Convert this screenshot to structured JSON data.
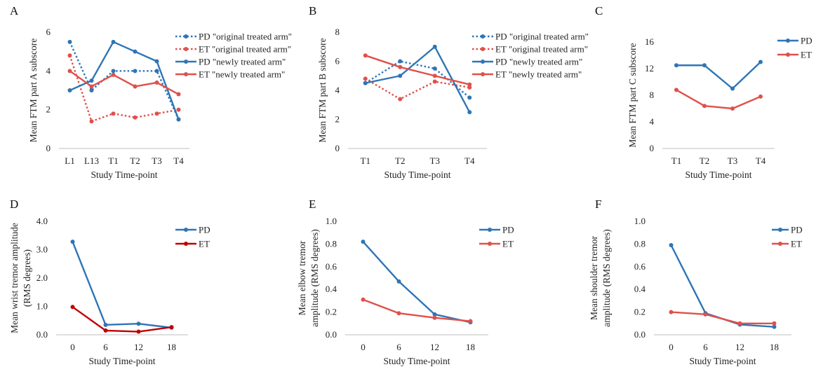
{
  "colors": {
    "PD": "#2e75b6",
    "ET": "#e0504a",
    "ET_D": "#c00000"
  },
  "chart_data": [
    {
      "panel": "A",
      "type": "line",
      "categories": [
        "L1",
        "L13",
        "T1",
        "T2",
        "T3",
        "T4"
      ],
      "xlabel": "Study Time-point",
      "ylabel": "Mean FTM part A subscore",
      "ylim": [
        0,
        6
      ],
      "yticks": [
        "0",
        "2",
        "4",
        "6"
      ],
      "ytick_values": [
        0,
        2,
        4,
        6
      ],
      "legend_position": "right",
      "series": [
        {
          "name": "PD \"original treated arm\"",
          "color": "PD",
          "dash": true,
          "values": [
            5.5,
            3.0,
            4.0,
            4.0,
            4.0,
            1.5
          ]
        },
        {
          "name": "ET \"original treated arm\"",
          "color": "ET",
          "dash": true,
          "values": [
            4.8,
            1.4,
            1.8,
            1.6,
            1.8,
            2.0
          ]
        },
        {
          "name": "PD \"newly treated arm\"",
          "color": "PD",
          "dash": false,
          "values": [
            3.0,
            3.5,
            5.5,
            5.0,
            4.5,
            1.5
          ]
        },
        {
          "name": "ET \"newly treated arm\"",
          "color": "ET",
          "dash": false,
          "values": [
            4.0,
            3.2,
            3.8,
            3.2,
            3.4,
            2.8
          ]
        }
      ]
    },
    {
      "panel": "B",
      "type": "line",
      "categories": [
        "T1",
        "T2",
        "T3",
        "T4"
      ],
      "xlabel": "Study Time-point",
      "ylabel": "Mean FTM part B subscore",
      "ylim": [
        0,
        8
      ],
      "yticks": [
        "0",
        "2",
        "4",
        "6",
        "8"
      ],
      "ytick_values": [
        0,
        2,
        4,
        6,
        8
      ],
      "legend_position": "right",
      "series": [
        {
          "name": "PD \"original treated arm\"",
          "color": "PD",
          "dash": true,
          "values": [
            4.5,
            6.0,
            5.5,
            3.5
          ]
        },
        {
          "name": "ET \"original treated arm\"",
          "color": "ET",
          "dash": true,
          "values": [
            4.8,
            3.4,
            4.6,
            4.2
          ]
        },
        {
          "name": "PD \"newly treated arm\"",
          "color": "PD",
          "dash": false,
          "values": [
            4.5,
            5.0,
            7.0,
            2.5
          ]
        },
        {
          "name": "ET \"newly treated arm\"",
          "color": "ET",
          "dash": false,
          "values": [
            6.4,
            5.6,
            5.0,
            4.4
          ]
        }
      ]
    },
    {
      "panel": "C",
      "type": "line",
      "categories": [
        "T1",
        "T2",
        "T3",
        "T4"
      ],
      "xlabel": "Study Time-point",
      "ylabel": "Mean FTM part C subscore",
      "ylim": [
        0,
        16
      ],
      "yticks": [
        "0",
        "4",
        "8",
        "12",
        "16"
      ],
      "ytick_values": [
        0,
        4,
        8,
        12,
        16
      ],
      "legend_position": "top-right",
      "series": [
        {
          "name": "PD",
          "color": "PD",
          "dash": false,
          "values": [
            12.5,
            12.5,
            9.0,
            13.0
          ]
        },
        {
          "name": "ET",
          "color": "ET",
          "dash": false,
          "values": [
            8.8,
            6.4,
            6.0,
            7.8
          ]
        }
      ]
    },
    {
      "panel": "D",
      "type": "line",
      "categories": [
        "0",
        "6",
        "12",
        "18"
      ],
      "xlabel": "Study Time-point",
      "ylabel": [
        "Mean wrist tremor amplitude",
        "(RMS degrees)"
      ],
      "ylim": [
        0,
        4
      ],
      "yticks": [
        "0.0",
        "1.0",
        "2.0",
        "3.0",
        "4.0"
      ],
      "ytick_values": [
        0,
        1,
        2,
        3,
        4
      ],
      "legend_position": "top-right",
      "series": [
        {
          "name": "PD",
          "color": "PD",
          "dash": false,
          "values": [
            3.28,
            0.35,
            0.39,
            0.25
          ]
        },
        {
          "name": "ET",
          "color": "ET_D",
          "dash": false,
          "values": [
            0.98,
            0.15,
            0.11,
            0.27
          ]
        }
      ]
    },
    {
      "panel": "E",
      "type": "line",
      "categories": [
        "0",
        "6",
        "12",
        "18"
      ],
      "xlabel": "Study Time-point",
      "ylabel": [
        "Mean elbow tremor",
        "amplitude (RMS degrees)"
      ],
      "ylim": [
        0,
        1
      ],
      "yticks": [
        "0.0",
        "0.2",
        "0.4",
        "0.6",
        "0.8",
        "1.0"
      ],
      "ytick_values": [
        0,
        0.2,
        0.4,
        0.6,
        0.8,
        1.0
      ],
      "legend_position": "top-right",
      "series": [
        {
          "name": "PD",
          "color": "PD",
          "dash": false,
          "values": [
            0.82,
            0.47,
            0.18,
            0.11
          ]
        },
        {
          "name": "ET",
          "color": "ET",
          "dash": false,
          "values": [
            0.31,
            0.19,
            0.15,
            0.12
          ]
        }
      ]
    },
    {
      "panel": "F",
      "type": "line",
      "categories": [
        "0",
        "6",
        "12",
        "18"
      ],
      "xlabel": "Study Time-point",
      "ylabel": [
        "Mean shoulder tremor",
        "amplitude (RMS degrees)"
      ],
      "ylim": [
        0,
        1
      ],
      "yticks": [
        "0.0",
        "0.2",
        "0.4",
        "0.6",
        "0.8",
        "1.0"
      ],
      "ytick_values": [
        0,
        0.2,
        0.4,
        0.6,
        0.8,
        1.0
      ],
      "legend_position": "top-right",
      "series": [
        {
          "name": "PD",
          "color": "PD",
          "dash": false,
          "values": [
            0.79,
            0.19,
            0.09,
            0.07
          ]
        },
        {
          "name": "ET",
          "color": "ET",
          "dash": false,
          "values": [
            0.2,
            0.18,
            0.1,
            0.1
          ]
        }
      ]
    }
  ]
}
